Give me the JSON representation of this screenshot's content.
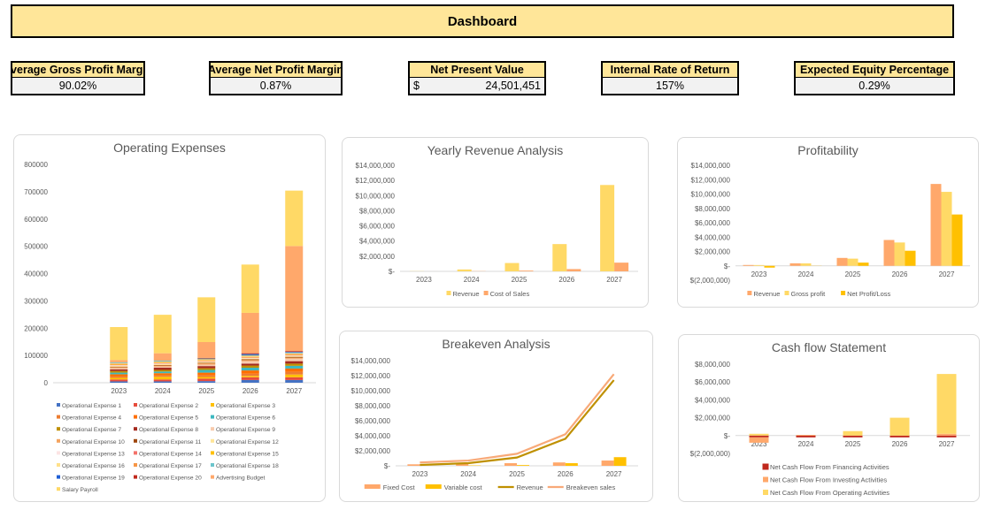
{
  "header": {
    "title": "Dashboard"
  },
  "kpis": [
    {
      "label": "Average Gross Profit Margin",
      "value": "90.02%"
    },
    {
      "label": "Average Net Profit Margin",
      "value": "0.87%"
    },
    {
      "label": "Net Present Value",
      "currency": "$",
      "value": "24,501,451"
    },
    {
      "label": "Internal Rate of Return",
      "value": "157%"
    },
    {
      "label": "Expected Equity Percentage",
      "value": "0.29%"
    }
  ],
  "chart_data": [
    {
      "id": "opex",
      "type": "bar",
      "stacked": true,
      "title": "Operating Expenses",
      "categories": [
        "",
        "2023",
        "2024",
        "2025",
        "2026",
        "2027"
      ],
      "ylim": [
        0,
        800000
      ],
      "yticks": [
        0,
        100000,
        200000,
        300000,
        400000,
        500000,
        600000,
        700000,
        800000
      ],
      "ytick_labels": [
        "0",
        "100000",
        "200000",
        "300000",
        "400000",
        "500000",
        "600000",
        "700000",
        "800000"
      ],
      "legend": "bottom",
      "series": [
        {
          "name": "Operational Expense 1",
          "color": "#4472C4",
          "values": [
            0,
            5000,
            5000,
            6000,
            10000,
            10000
          ]
        },
        {
          "name": "Operational Expense 2",
          "color": "#E74C3C",
          "values": [
            0,
            7000,
            7000,
            9000,
            10000,
            10000
          ]
        },
        {
          "name": "Operational Expense 3",
          "color": "#FFC000",
          "values": [
            0,
            6000,
            10000,
            6000,
            5000,
            10000
          ]
        },
        {
          "name": "Operational Expense 4",
          "color": "#ED7D31",
          "values": [
            0,
            5000,
            5000,
            6000,
            8000,
            10000
          ]
        },
        {
          "name": "Operational Expense 5",
          "color": "#FF6F00",
          "values": [
            0,
            8000,
            8000,
            10000,
            12000,
            12000
          ]
        },
        {
          "name": "Operational Expense 6",
          "color": "#3CB8C0",
          "values": [
            0,
            6000,
            6000,
            10000,
            10000,
            10000
          ]
        },
        {
          "name": "Operational Expense 7",
          "color": "#BF9000",
          "values": [
            0,
            6000,
            6000,
            6000,
            8000,
            8000
          ]
        },
        {
          "name": "Operational Expense 8",
          "color": "#A52A1E",
          "values": [
            0,
            6000,
            8000,
            8000,
            7000,
            9000
          ]
        },
        {
          "name": "Operational Expense 9",
          "color": "#F8CBAD",
          "values": [
            0,
            4000,
            4000,
            5000,
            9000,
            9000
          ]
        },
        {
          "name": "Operational Expense 10",
          "color": "#F4A460",
          "values": [
            0,
            4000,
            4000,
            5000,
            4000,
            4000
          ]
        },
        {
          "name": "Operational Expense 11",
          "color": "#9E480E",
          "values": [
            0,
            2000,
            2000,
            2000,
            3000,
            3000
          ]
        },
        {
          "name": "Operational Expense 12",
          "color": "#FFE699",
          "values": [
            0,
            3000,
            3000,
            3000,
            3000,
            3000
          ]
        },
        {
          "name": "Operational Expense 13",
          "color": "#FCE4E4",
          "values": [
            0,
            2000,
            2000,
            2000,
            2000,
            2000
          ]
        },
        {
          "name": "Operational Expense 14",
          "color": "#F4726A",
          "values": [
            0,
            2000,
            2000,
            2000,
            2000,
            2000
          ]
        },
        {
          "name": "Operational Expense 15",
          "color": "#FFC000",
          "values": [
            0,
            2000,
            2000,
            2000,
            2000,
            2000
          ]
        },
        {
          "name": "Operational Expense 16",
          "color": "#FFE08A",
          "values": [
            0,
            2000,
            2000,
            2000,
            2000,
            2000
          ]
        },
        {
          "name": "Operational Expense 17",
          "color": "#F79646",
          "values": [
            0,
            2000,
            2000,
            2000,
            2000,
            2000
          ]
        },
        {
          "name": "Operational Expense 18",
          "color": "#6CC5CC",
          "values": [
            0,
            3000,
            3000,
            3000,
            3000,
            3000
          ]
        },
        {
          "name": "Operational Expense 19",
          "color": "#1F5FD6",
          "values": [
            0,
            0,
            0,
            0,
            3000,
            2000
          ]
        },
        {
          "name": "Operational Expense 20",
          "color": "#C0281C",
          "values": [
            0,
            0,
            0,
            2000,
            3000,
            3000
          ]
        },
        {
          "name": "Advertising Budget",
          "color": "#FFA86B",
          "values": [
            0,
            8000,
            27000,
            58000,
            148000,
            385000
          ]
        },
        {
          "name": "Salary Payroll",
          "color": "#FFD966",
          "values": [
            0,
            121000,
            141000,
            164000,
            177000,
            203000
          ]
        }
      ]
    },
    {
      "id": "rev",
      "type": "bar",
      "title": "Yearly Revenue Analysis",
      "categories": [
        "2023",
        "2024",
        "2025",
        "2026",
        "2027"
      ],
      "ylim": [
        0,
        14000000
      ],
      "yticks": [
        0,
        2000000,
        4000000,
        6000000,
        8000000,
        10000000,
        12000000,
        14000000
      ],
      "ytick_labels": [
        "$-",
        "$2,000,000",
        "$4,000,000",
        "$6,000,000",
        "$8,000,000",
        "$10,000,000",
        "$12,000,000",
        "$14,000,000"
      ],
      "legend": "bottom",
      "series": [
        {
          "name": "Revenue",
          "color": "#FFD966",
          "values": [
            20000,
            250000,
            1100000,
            3600000,
            11400000
          ]
        },
        {
          "name": "Cost of Sales",
          "color": "#FFA86B",
          "values": [
            2000,
            25000,
            100000,
            300000,
            1150000
          ]
        }
      ]
    },
    {
      "id": "prof",
      "type": "bar",
      "title": "Profitability",
      "categories": [
        "2023",
        "2024",
        "2025",
        "2026",
        "2027"
      ],
      "ylim": [
        -2000000,
        14000000
      ],
      "yticks": [
        -2000000,
        0,
        2000000,
        4000000,
        6000000,
        8000000,
        10000000,
        12000000,
        14000000
      ],
      "ytick_labels": [
        "$(2,000,000)",
        "$-",
        "$2,000,000",
        "$4,000,000",
        "$6,000,000",
        "$8,000,000",
        "$10,000,000",
        "$12,000,000",
        "$14,000,000"
      ],
      "legend": "bottom",
      "series": [
        {
          "name": "Revenue",
          "color": "#FFA86B",
          "values": [
            120000,
            350000,
            1100000,
            3600000,
            11400000
          ]
        },
        {
          "name": "Gross profit",
          "color": "#FFD966",
          "values": [
            110000,
            340000,
            1000000,
            3250000,
            10300000
          ]
        },
        {
          "name": "Net Profit/Loss",
          "color": "#FFC000",
          "values": [
            -250000,
            20000,
            450000,
            2100000,
            7150000
          ]
        }
      ]
    },
    {
      "id": "be",
      "type": "bar+line",
      "title": "Breakeven Analysis",
      "categories": [
        "2023",
        "2024",
        "2025",
        "2026",
        "2027"
      ],
      "ylim": [
        0,
        14000000
      ],
      "yticks": [
        0,
        2000000,
        4000000,
        6000000,
        8000000,
        10000000,
        12000000,
        14000000
      ],
      "ytick_labels": [
        "$-",
        "$2,000,000",
        "$4,000,000",
        "$6,000,000",
        "$8,000,000",
        "$10,000,000",
        "$12,000,000",
        "$14,000,000"
      ],
      "legend": "bottom",
      "series": [
        {
          "name": "Fixed Cost",
          "kind": "bar",
          "color": "#FFA86B",
          "values": [
            200000,
            250000,
            350000,
            450000,
            700000
          ]
        },
        {
          "name": "Variable cost",
          "kind": "bar",
          "color": "#FFC000",
          "values": [
            10000,
            50000,
            100000,
            350000,
            1150000
          ]
        },
        {
          "name": "Revenue",
          "kind": "line",
          "color": "#BF9000",
          "values": [
            120000,
            350000,
            1100000,
            3600000,
            11400000
          ]
        },
        {
          "name": "Breakeven sales",
          "kind": "line",
          "color": "#F8A978",
          "values": [
            450000,
            700000,
            1600000,
            4200000,
            12200000
          ]
        }
      ]
    },
    {
      "id": "cf",
      "type": "bar",
      "stacked": true,
      "title": "Cash flow Statement",
      "categories": [
        "2023",
        "2024",
        "2025",
        "2026",
        "2027"
      ],
      "ylim": [
        -2000000,
        8000000
      ],
      "yticks": [
        -2000000,
        0,
        2000000,
        4000000,
        6000000,
        8000000
      ],
      "ytick_labels": [
        "$(2,000,000)",
        "$-",
        "$2,000,000",
        "$4,000,000",
        "$6,000,000",
        "$8,000,000"
      ],
      "legend": "bottom",
      "series": [
        {
          "name": "Net Cash Flow From Financing Activities",
          "color": "#C0281C",
          "values": [
            -200000,
            -200000,
            -200000,
            -200000,
            -200000
          ]
        },
        {
          "name": "Net Cash Flow From Investing Activities",
          "color": "#FFA86B",
          "values": [
            -600000,
            80000,
            0,
            0,
            200000
          ]
        },
        {
          "name": "Net Cash Flow From Operating Activities",
          "color": "#FFD966",
          "values": [
            200000,
            0,
            500000,
            2000000,
            6700000
          ]
        }
      ]
    }
  ]
}
